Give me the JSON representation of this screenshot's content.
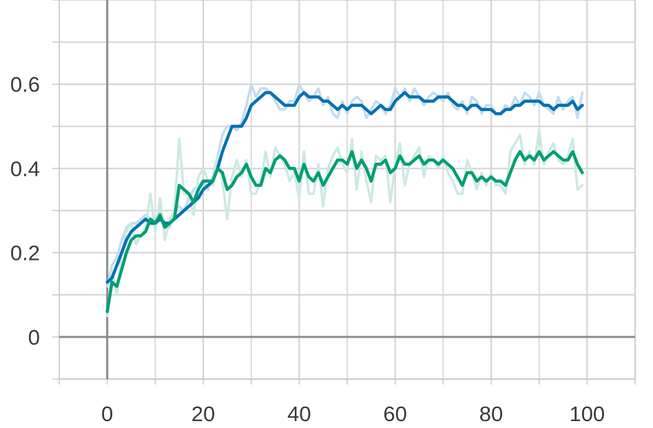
{
  "chart_data": {
    "type": "line",
    "title": "",
    "xlabel": "",
    "ylabel": "",
    "xlim": [
      -10,
      110
    ],
    "ylim": [
      -0.1,
      0.8
    ],
    "x_ticks": [
      0,
      20,
      40,
      60,
      80,
      100
    ],
    "x_tick_labels": [
      "0",
      "20",
      "40",
      "60",
      "80",
      "100"
    ],
    "y_ticks": [
      0,
      0.2,
      0.4,
      0.6
    ],
    "y_tick_labels": [
      "0",
      "0.2",
      "0.4",
      "0.6"
    ],
    "grid": true,
    "series": [
      {
        "color": "#0072b2",
        "raw_color": "#c3dbf0",
        "x": [
          0,
          1,
          2,
          3,
          4,
          5,
          6,
          7,
          8,
          9,
          10,
          11,
          12,
          13,
          14,
          15,
          16,
          17,
          18,
          19,
          20,
          21,
          22,
          23,
          24,
          25,
          26,
          27,
          28,
          29,
          30,
          31,
          32,
          33,
          34,
          35,
          36,
          37,
          38,
          39,
          40,
          41,
          42,
          43,
          44,
          45,
          46,
          47,
          48,
          49,
          50,
          51,
          52,
          53,
          54,
          55,
          56,
          57,
          58,
          59,
          60,
          61,
          62,
          63,
          64,
          65,
          66,
          67,
          68,
          69,
          70,
          71,
          72,
          73,
          74,
          75,
          76,
          77,
          78,
          79,
          80,
          81,
          82,
          83,
          84,
          85,
          86,
          87,
          88,
          89,
          90,
          91,
          92,
          93,
          94,
          95,
          96,
          97,
          98,
          99
        ],
        "smoothed": [
          0.13,
          0.14,
          0.17,
          0.2,
          0.23,
          0.25,
          0.26,
          0.27,
          0.28,
          0.27,
          0.27,
          0.28,
          0.27,
          0.27,
          0.28,
          0.29,
          0.3,
          0.31,
          0.32,
          0.33,
          0.35,
          0.36,
          0.37,
          0.4,
          0.44,
          0.47,
          0.5,
          0.5,
          0.5,
          0.52,
          0.55,
          0.56,
          0.57,
          0.58,
          0.58,
          0.57,
          0.56,
          0.55,
          0.55,
          0.55,
          0.57,
          0.58,
          0.57,
          0.57,
          0.57,
          0.56,
          0.56,
          0.55,
          0.54,
          0.55,
          0.54,
          0.55,
          0.55,
          0.55,
          0.54,
          0.53,
          0.54,
          0.55,
          0.54,
          0.54,
          0.56,
          0.57,
          0.58,
          0.57,
          0.57,
          0.57,
          0.56,
          0.56,
          0.56,
          0.57,
          0.57,
          0.57,
          0.56,
          0.55,
          0.55,
          0.54,
          0.55,
          0.55,
          0.54,
          0.54,
          0.54,
          0.53,
          0.53,
          0.54,
          0.54,
          0.55,
          0.55,
          0.56,
          0.56,
          0.56,
          0.56,
          0.55,
          0.55,
          0.54,
          0.55,
          0.55,
          0.55,
          0.56,
          0.54,
          0.55
        ],
        "raw": [
          0.12,
          0.17,
          0.19,
          0.23,
          0.26,
          0.27,
          0.27,
          0.28,
          0.29,
          0.28,
          0.26,
          0.3,
          0.27,
          0.26,
          0.3,
          0.31,
          0.3,
          0.33,
          0.35,
          0.36,
          0.37,
          0.35,
          0.38,
          0.43,
          0.48,
          0.5,
          0.5,
          0.49,
          0.51,
          0.55,
          0.6,
          0.57,
          0.59,
          0.59,
          0.58,
          0.56,
          0.54,
          0.54,
          0.56,
          0.56,
          0.6,
          0.58,
          0.56,
          0.57,
          0.59,
          0.55,
          0.57,
          0.53,
          0.52,
          0.56,
          0.53,
          0.56,
          0.57,
          0.56,
          0.52,
          0.54,
          0.56,
          0.55,
          0.53,
          0.55,
          0.59,
          0.57,
          0.59,
          0.56,
          0.59,
          0.57,
          0.55,
          0.57,
          0.58,
          0.57,
          0.56,
          0.58,
          0.55,
          0.54,
          0.56,
          0.53,
          0.57,
          0.56,
          0.53,
          0.55,
          0.55,
          0.53,
          0.53,
          0.55,
          0.54,
          0.57,
          0.55,
          0.58,
          0.57,
          0.55,
          0.58,
          0.55,
          0.54,
          0.53,
          0.57,
          0.54,
          0.56,
          0.57,
          0.52,
          0.58
        ]
      },
      {
        "color": "#009e73",
        "raw_color": "#cde9e2",
        "x": [
          0,
          1,
          2,
          3,
          4,
          5,
          6,
          7,
          8,
          9,
          10,
          11,
          12,
          13,
          14,
          15,
          16,
          17,
          18,
          19,
          20,
          21,
          22,
          23,
          24,
          25,
          26,
          27,
          28,
          29,
          30,
          31,
          32,
          33,
          34,
          35,
          36,
          37,
          38,
          39,
          40,
          41,
          42,
          43,
          44,
          45,
          46,
          47,
          48,
          49,
          50,
          51,
          52,
          53,
          54,
          55,
          56,
          57,
          58,
          59,
          60,
          61,
          62,
          63,
          64,
          65,
          66,
          67,
          68,
          69,
          70,
          71,
          72,
          73,
          74,
          75,
          76,
          77,
          78,
          79,
          80,
          81,
          82,
          83,
          84,
          85,
          86,
          87,
          88,
          89,
          90,
          91,
          92,
          93,
          94,
          95,
          96,
          97,
          98,
          99
        ],
        "smoothed": [
          0.06,
          0.13,
          0.12,
          0.16,
          0.2,
          0.23,
          0.24,
          0.24,
          0.25,
          0.28,
          0.27,
          0.29,
          0.26,
          0.27,
          0.28,
          0.36,
          0.35,
          0.34,
          0.32,
          0.35,
          0.37,
          0.37,
          0.37,
          0.4,
          0.39,
          0.35,
          0.36,
          0.38,
          0.39,
          0.41,
          0.38,
          0.36,
          0.36,
          0.4,
          0.39,
          0.42,
          0.43,
          0.42,
          0.4,
          0.4,
          0.37,
          0.41,
          0.38,
          0.37,
          0.39,
          0.36,
          0.38,
          0.4,
          0.42,
          0.42,
          0.41,
          0.44,
          0.4,
          0.42,
          0.4,
          0.37,
          0.41,
          0.41,
          0.42,
          0.39,
          0.4,
          0.43,
          0.41,
          0.41,
          0.42,
          0.43,
          0.41,
          0.42,
          0.42,
          0.41,
          0.42,
          0.41,
          0.4,
          0.38,
          0.36,
          0.39,
          0.39,
          0.37,
          0.38,
          0.37,
          0.38,
          0.37,
          0.37,
          0.36,
          0.39,
          0.42,
          0.44,
          0.42,
          0.43,
          0.42,
          0.44,
          0.42,
          0.43,
          0.44,
          0.43,
          0.42,
          0.42,
          0.44,
          0.41,
          0.39
        ],
        "raw": [
          0.05,
          0.16,
          0.1,
          0.2,
          0.25,
          0.27,
          0.22,
          0.24,
          0.26,
          0.34,
          0.25,
          0.33,
          0.23,
          0.28,
          0.3,
          0.47,
          0.34,
          0.34,
          0.29,
          0.38,
          0.4,
          0.37,
          0.36,
          0.43,
          0.37,
          0.28,
          0.38,
          0.42,
          0.38,
          0.42,
          0.34,
          0.34,
          0.37,
          0.44,
          0.38,
          0.45,
          0.43,
          0.41,
          0.37,
          0.39,
          0.33,
          0.44,
          0.34,
          0.34,
          0.41,
          0.31,
          0.4,
          0.43,
          0.45,
          0.41,
          0.39,
          0.47,
          0.35,
          0.44,
          0.37,
          0.32,
          0.43,
          0.42,
          0.43,
          0.32,
          0.41,
          0.46,
          0.36,
          0.41,
          0.43,
          0.45,
          0.38,
          0.43,
          0.42,
          0.4,
          0.43,
          0.39,
          0.37,
          0.34,
          0.34,
          0.42,
          0.39,
          0.35,
          0.39,
          0.36,
          0.39,
          0.36,
          0.36,
          0.34,
          0.44,
          0.46,
          0.48,
          0.41,
          0.44,
          0.41,
          0.49,
          0.41,
          0.44,
          0.46,
          0.42,
          0.41,
          0.43,
          0.47,
          0.35,
          0.36
        ]
      }
    ]
  }
}
